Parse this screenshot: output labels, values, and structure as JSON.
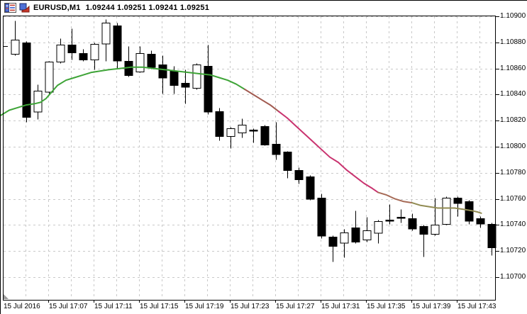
{
  "window": {
    "symbol_period": "EURUSD,M1",
    "quotes": "1.09244 1.09251 1.09241 1.09251",
    "icons": [
      "symbols-table-icon",
      "bar-chart-icon"
    ]
  },
  "chart_data": {
    "type": "candlestick",
    "symbol": "EURUSD",
    "timeframe": "M1",
    "title": "EURUSD,M1  1.09244 1.09251 1.09241 1.09251",
    "grid": true,
    "y_axis": {
      "max": 1.109,
      "min": 1.107,
      "labels": [
        "1.10900",
        "1.10880",
        "1.10860",
        "1.10840",
        "1.10820",
        "1.10800",
        "1.10780",
        "1.10760",
        "1.10740",
        "1.10720",
        "1.10700"
      ]
    },
    "x_axis": {
      "labels": [
        "15 Jul 2016",
        "15 Jul 17:07",
        "15 Jul 17:11",
        "15 Jul 17:15",
        "15 Jul 17:19",
        "15 Jul 17:23",
        "15 Jul 17:27",
        "15 Jul 17:31",
        "15 Jul 17:35",
        "15 Jul 17:39",
        "15 Jul 17:43"
      ]
    },
    "colors": {
      "bull_body": "#ffffff",
      "bear_body": "#000000",
      "wick": "#000000",
      "grid": "#c9c9c9",
      "frame": "#000000",
      "background": "#ffffff"
    },
    "candles": [
      {
        "t": "17:04",
        "o": 1.10871,
        "h": 1.10897,
        "l": 1.1087,
        "c": 1.10882
      },
      {
        "t": "17:05",
        "o": 1.1088,
        "h": 1.10881,
        "l": 1.10819,
        "c": 1.10823
      },
      {
        "t": "17:06",
        "o": 1.10827,
        "h": 1.10848,
        "l": 1.10821,
        "c": 1.10843
      },
      {
        "t": "17:07",
        "o": 1.10842,
        "h": 1.10866,
        "l": 1.10841,
        "c": 1.10865
      },
      {
        "t": "17:08",
        "o": 1.10865,
        "h": 1.10883,
        "l": 1.10864,
        "c": 1.10878
      },
      {
        "t": "17:09",
        "o": 1.10878,
        "h": 1.10891,
        "l": 1.10867,
        "c": 1.10872
      },
      {
        "t": "17:10",
        "o": 1.10872,
        "h": 1.10875,
        "l": 1.10866,
        "c": 1.10867
      },
      {
        "t": "17:11",
        "o": 1.10867,
        "h": 1.1088,
        "l": 1.10859,
        "c": 1.10879
      },
      {
        "t": "17:12",
        "o": 1.10879,
        "h": 1.10898,
        "l": 1.10866,
        "c": 1.10895
      },
      {
        "t": "17:13",
        "o": 1.10893,
        "h": 1.10895,
        "l": 1.1086,
        "c": 1.10866
      },
      {
        "t": "17:14",
        "o": 1.10866,
        "h": 1.10877,
        "l": 1.10854,
        "c": 1.10855
      },
      {
        "t": "17:15",
        "o": 1.10858,
        "h": 1.10877,
        "l": 1.10857,
        "c": 1.10872
      },
      {
        "t": "17:16",
        "o": 1.10871,
        "h": 1.10874,
        "l": 1.1086,
        "c": 1.10861
      },
      {
        "t": "17:17",
        "o": 1.10863,
        "h": 1.1087,
        "l": 1.10841,
        "c": 1.10853
      },
      {
        "t": "17:18",
        "o": 1.10858,
        "h": 1.10862,
        "l": 1.10841,
        "c": 1.10847
      },
      {
        "t": "17:19",
        "o": 1.10849,
        "h": 1.10859,
        "l": 1.10833,
        "c": 1.10846
      },
      {
        "t": "17:20",
        "o": 1.10845,
        "h": 1.10864,
        "l": 1.10844,
        "c": 1.10863
      },
      {
        "t": "17:21",
        "o": 1.10862,
        "h": 1.10878,
        "l": 1.10825,
        "c": 1.10827
      },
      {
        "t": "17:22",
        "o": 1.10827,
        "h": 1.1083,
        "l": 1.10805,
        "c": 1.10808
      },
      {
        "t": "17:23",
        "o": 1.10808,
        "h": 1.10815,
        "l": 1.10799,
        "c": 1.10814
      },
      {
        "t": "17:24",
        "o": 1.10811,
        "h": 1.10822,
        "l": 1.10807,
        "c": 1.10817
      },
      {
        "t": "17:25",
        "o": 1.10813,
        "h": 1.10814,
        "l": 1.10803,
        "c": 1.10813
      },
      {
        "t": "17:26",
        "o": 1.10816,
        "h": 1.10817,
        "l": 1.10801,
        "c": 1.10802
      },
      {
        "t": "17:27",
        "o": 1.10802,
        "h": 1.10819,
        "l": 1.1079,
        "c": 1.10794
      },
      {
        "t": "17:28",
        "o": 1.10796,
        "h": 1.10797,
        "l": 1.10776,
        "c": 1.10782
      },
      {
        "t": "17:29",
        "o": 1.10782,
        "h": 1.10784,
        "l": 1.10772,
        "c": 1.10775
      },
      {
        "t": "17:30",
        "o": 1.10777,
        "h": 1.10778,
        "l": 1.10759,
        "c": 1.1076
      },
      {
        "t": "17:31",
        "o": 1.10761,
        "h": 1.10764,
        "l": 1.1073,
        "c": 1.10732
      },
      {
        "t": "17:32",
        "o": 1.10731,
        "h": 1.10732,
        "l": 1.10712,
        "c": 1.10724
      },
      {
        "t": "17:33",
        "o": 1.10726,
        "h": 1.10737,
        "l": 1.10715,
        "c": 1.10734
      },
      {
        "t": "17:34",
        "o": 1.10738,
        "h": 1.10751,
        "l": 1.10726,
        "c": 1.10727
      },
      {
        "t": "17:35",
        "o": 1.10729,
        "h": 1.10746,
        "l": 1.10727,
        "c": 1.10736
      },
      {
        "t": "17:36",
        "o": 1.10734,
        "h": 1.10744,
        "l": 1.10726,
        "c": 1.10743
      },
      {
        "t": "17:37",
        "o": 1.10744,
        "h": 1.10756,
        "l": 1.10741,
        "c": 1.10744
      },
      {
        "t": "17:38",
        "o": 1.10746,
        "h": 1.10752,
        "l": 1.10742,
        "c": 1.10746
      },
      {
        "t": "17:39",
        "o": 1.10745,
        "h": 1.10749,
        "l": 1.10736,
        "c": 1.10737
      },
      {
        "t": "17:40",
        "o": 1.10739,
        "h": 1.1074,
        "l": 1.10716,
        "c": 1.10733
      },
      {
        "t": "17:41",
        "o": 1.10733,
        "h": 1.10761,
        "l": 1.10732,
        "c": 1.1074
      },
      {
        "t": "17:42",
        "o": 1.10741,
        "h": 1.10762,
        "l": 1.1074,
        "c": 1.10761
      },
      {
        "t": "17:43",
        "o": 1.10761,
        "h": 1.10762,
        "l": 1.10747,
        "c": 1.10757
      },
      {
        "t": "17:44",
        "o": 1.10758,
        "h": 1.10759,
        "l": 1.10741,
        "c": 1.10743
      },
      {
        "t": "17:45",
        "o": 1.10745,
        "h": 1.10747,
        "l": 1.10738,
        "c": 1.10741
      },
      {
        "t": "17:46",
        "o": 1.10741,
        "h": 1.10742,
        "l": 1.10717,
        "c": 1.10723
      }
    ],
    "ma_segments": [
      {
        "name": "ma-up",
        "color": "#3ea437",
        "points": [
          [
            -1.25,
            1.10824
          ],
          [
            -0.5,
            1.10828
          ],
          [
            0.25,
            1.1083
          ],
          [
            1,
            1.10832
          ],
          [
            1.75,
            1.10833
          ],
          [
            2.25,
            1.10834
          ],
          [
            2.75,
            1.10837
          ],
          [
            3.25,
            1.10842
          ],
          [
            3.75,
            1.10847
          ],
          [
            4.5,
            1.10851
          ],
          [
            5.25,
            1.10853
          ],
          [
            6,
            1.10855
          ],
          [
            6.75,
            1.10857
          ],
          [
            7.5,
            1.10858
          ],
          [
            8.25,
            1.10859
          ],
          [
            9.25,
            1.1086
          ],
          [
            10.25,
            1.10861
          ],
          [
            11.25,
            1.10861
          ],
          [
            12.25,
            1.1086
          ],
          [
            13.25,
            1.10859
          ],
          [
            14.25,
            1.10858
          ],
          [
            15.25,
            1.10857
          ],
          [
            16.25,
            1.10856
          ],
          [
            17.25,
            1.10855
          ],
          [
            18,
            1.10853
          ],
          [
            18.75,
            1.10851
          ],
          [
            19.5,
            1.10848
          ],
          [
            20.25,
            1.10844
          ]
        ]
      },
      {
        "name": "ma-turn-down",
        "color": "#a15a50",
        "points": [
          [
            20.25,
            1.10844
          ],
          [
            21,
            1.1084
          ],
          [
            21.75,
            1.10836
          ],
          [
            22.5,
            1.10832
          ],
          [
            23.25,
            1.10827
          ]
        ]
      },
      {
        "name": "ma-down",
        "color": "#c9336f",
        "points": [
          [
            23.25,
            1.10827
          ],
          [
            24,
            1.10822
          ],
          [
            24.75,
            1.10816
          ],
          [
            25.5,
            1.1081
          ],
          [
            26.25,
            1.10804
          ],
          [
            27,
            1.10798
          ],
          [
            27.75,
            1.10792
          ],
          [
            28.5,
            1.10788
          ],
          [
            29.25,
            1.10782
          ],
          [
            30,
            1.10777
          ],
          [
            30.75,
            1.10772
          ],
          [
            31.5,
            1.10768
          ],
          [
            32,
            1.10765
          ]
        ]
      },
      {
        "name": "ma-turn-flat",
        "color": "#a66a56",
        "points": [
          [
            32,
            1.10765
          ],
          [
            32.75,
            1.10763
          ],
          [
            33.5,
            1.1076
          ],
          [
            34.25,
            1.10758
          ],
          [
            35,
            1.10757
          ]
        ]
      },
      {
        "name": "ma-flat",
        "color": "#918b52",
        "points": [
          [
            35,
            1.10757
          ],
          [
            35.75,
            1.10755
          ],
          [
            36.5,
            1.10754
          ],
          [
            37.25,
            1.10753
          ],
          [
            38,
            1.10753
          ],
          [
            38.75,
            1.10753
          ],
          [
            39.5,
            1.10752
          ],
          [
            40.25,
            1.10751
          ],
          [
            40.75,
            1.1075
          ],
          [
            41.1,
            1.10749
          ]
        ]
      }
    ]
  }
}
